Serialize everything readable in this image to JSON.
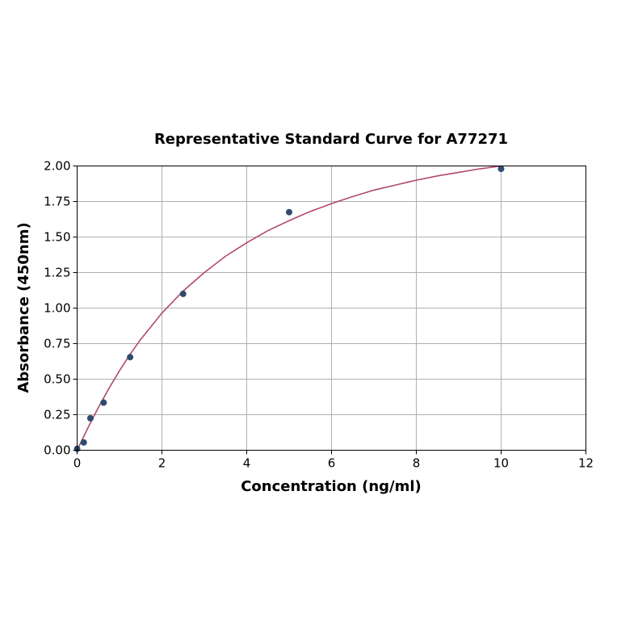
{
  "chart_data": {
    "type": "scatter",
    "title": "Representative Standard Curve for A77271",
    "xlabel": "Concentration (ng/ml)",
    "ylabel": "Absorbance (450nm)",
    "xlim": [
      0,
      12
    ],
    "ylim": [
      0,
      2.0
    ],
    "x_ticks": [
      0,
      2,
      4,
      6,
      8,
      10,
      12
    ],
    "x_tick_labels": [
      "0",
      "2",
      "4",
      "6",
      "8",
      "10",
      "12"
    ],
    "y_ticks": [
      0,
      0.25,
      0.5,
      0.75,
      1.0,
      1.25,
      1.5,
      1.75,
      2.0
    ],
    "y_tick_labels": [
      "0.00",
      "0.25",
      "0.50",
      "0.75",
      "1.00",
      "1.25",
      "1.50",
      "1.75",
      "2.00"
    ],
    "grid": true,
    "series": [
      {
        "kind": "points",
        "x": [
          0,
          0.156,
          0.313,
          0.625,
          1.25,
          2.5,
          5,
          10
        ],
        "y": [
          0.01,
          0.055,
          0.225,
          0.335,
          0.655,
          1.1,
          1.675,
          1.98
        ],
        "color": "#2e4a6e"
      },
      {
        "kind": "fit-curve",
        "x": [
          0,
          0.25,
          0.5,
          0.75,
          1,
          1.25,
          1.5,
          2,
          2.5,
          3,
          3.5,
          4,
          4.5,
          5,
          5.5,
          6,
          6.5,
          7,
          7.5,
          8,
          8.5,
          9,
          9.5,
          10
        ],
        "y": [
          0,
          0.155,
          0.3,
          0.435,
          0.56,
          0.675,
          0.78,
          0.965,
          1.12,
          1.25,
          1.365,
          1.46,
          1.545,
          1.615,
          1.68,
          1.735,
          1.785,
          1.83,
          1.865,
          1.9,
          1.93,
          1.955,
          1.98,
          2.0
        ],
        "color": "#b04a6a"
      }
    ]
  }
}
